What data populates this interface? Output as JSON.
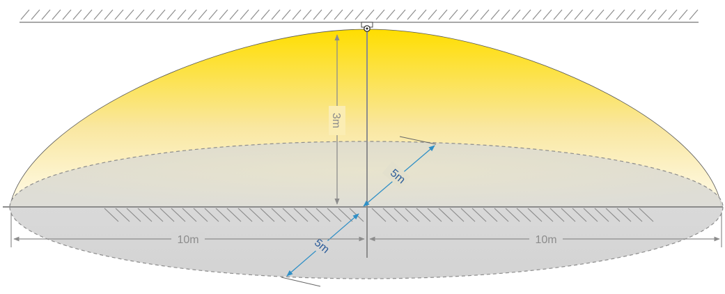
{
  "diagram": {
    "labels": {
      "height": "3m",
      "radius_back": "5m",
      "radius_front": "5m",
      "width_left": "10m",
      "width_right": "10m"
    },
    "icons": {
      "sensor": "ceiling-sensor-icon"
    },
    "colors": {
      "beam_top": "#FFDE00",
      "beam_mid": "#F8E59A",
      "beam_edge": "#FFFDF0",
      "floor_zone": "#D6D6D6",
      "lines": "#8C8C8C",
      "arrow_blue": "#2F8FC6",
      "label_gray": "#8C8C8C",
      "label_blue": "#2B5C9A"
    }
  }
}
